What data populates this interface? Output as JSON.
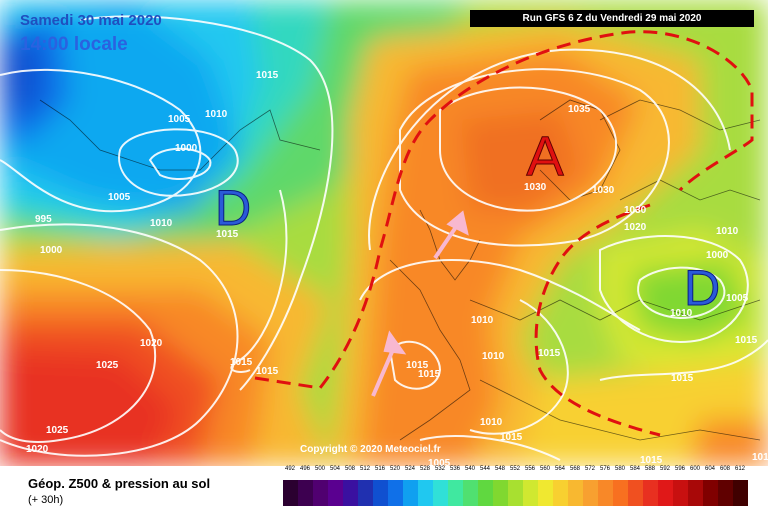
{
  "header": {
    "date": "Samedi 30 mai 2020",
    "local_time": "14:00 locale",
    "run_info": "Run GFS 6 Z du Vendredi 29 mai 2020"
  },
  "copyright": "Copyright © 2020 Meteociel.fr",
  "footer": {
    "title": "Géop. Z500 & pression au sol",
    "subtitle": "(+ 30h)"
  },
  "legend": {
    "values": [
      "492",
      "496",
      "500",
      "504",
      "508",
      "512",
      "516",
      "520",
      "524",
      "528",
      "532",
      "536",
      "540",
      "544",
      "548",
      "552",
      "556",
      "560",
      "564",
      "568",
      "572",
      "576",
      "580",
      "584",
      "588",
      "592",
      "596",
      "600",
      "604",
      "608",
      "612"
    ],
    "colors": [
      "#2b0030",
      "#3d0050",
      "#500070",
      "#5a0090",
      "#3a10a0",
      "#2030b0",
      "#1050d0",
      "#1070e8",
      "#10a0f0",
      "#20c8f0",
      "#30e0d8",
      "#40e8a0",
      "#50e070",
      "#60d840",
      "#80d830",
      "#a8e030",
      "#d0e830",
      "#f0e830",
      "#f8d030",
      "#f8b830",
      "#f8a030",
      "#f88828",
      "#f87020",
      "#f05020",
      "#e83020",
      "#e01818",
      "#c81010",
      "#a80808",
      "#800000",
      "#600000",
      "#400000"
    ]
  },
  "pressure_centers": [
    {
      "letter": "A",
      "type": "high",
      "color": "#e01010"
    },
    {
      "letter": "D",
      "type": "low",
      "color": "#2a5ad8"
    },
    {
      "letter": "D",
      "type": "low",
      "color": "#2a5ad8"
    }
  ],
  "isobar_labels": [
    "1015",
    "1005",
    "1010",
    "1000",
    "1005",
    "1010",
    "1015",
    "995",
    "1000",
    "1020",
    "1025",
    "1025",
    "1020",
    "1015",
    "1015",
    "1035",
    "1030",
    "1030",
    "1030",
    "1020",
    "1010",
    "1000",
    "1005",
    "1010",
    "1015",
    "1015",
    "1010",
    "1010",
    "1015",
    "1015",
    "1015",
    "1015",
    "1010",
    "1005",
    "1015",
    "1010"
  ]
}
